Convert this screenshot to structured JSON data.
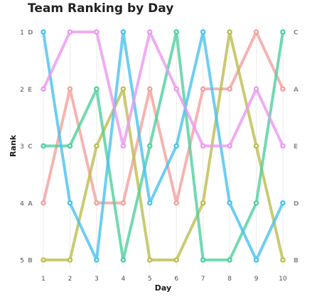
{
  "chart_data": {
    "type": "line",
    "title": "Team Ranking by Day",
    "xlabel": "Day",
    "ylabel": "Rank",
    "x": [
      1,
      2,
      3,
      4,
      5,
      6,
      7,
      8,
      9,
      10
    ],
    "ylim": [
      1,
      5
    ],
    "y_ticks": [
      "1",
      "2",
      "3",
      "4",
      "5"
    ],
    "y_axis_reversed": true,
    "grid": "vertical",
    "legend": "none",
    "start_labels": [
      "D",
      "E",
      "C",
      "A",
      "B"
    ],
    "end_labels": [
      "C",
      "A",
      "E",
      "D",
      "B"
    ],
    "series": [
      {
        "name": "A",
        "color": "#f4a09c",
        "values": [
          4,
          2,
          4,
          4,
          2,
          4,
          2,
          2,
          1,
          2
        ]
      },
      {
        "name": "B",
        "color": "#bdbd4f",
        "values": [
          5,
          5,
          3,
          2,
          5,
          5,
          4,
          1,
          3,
          5
        ]
      },
      {
        "name": "C",
        "color": "#4fcf9d",
        "values": [
          3,
          3,
          2,
          5,
          3,
          1,
          5,
          5,
          4,
          1
        ]
      },
      {
        "name": "D",
        "color": "#48c2ee",
        "values": [
          1,
          4,
          5,
          1,
          4,
          3,
          1,
          4,
          5,
          4
        ]
      },
      {
        "name": "E",
        "color": "#ea98f0",
        "values": [
          2,
          1,
          1,
          3,
          1,
          2,
          3,
          3,
          2,
          3
        ]
      }
    ]
  }
}
